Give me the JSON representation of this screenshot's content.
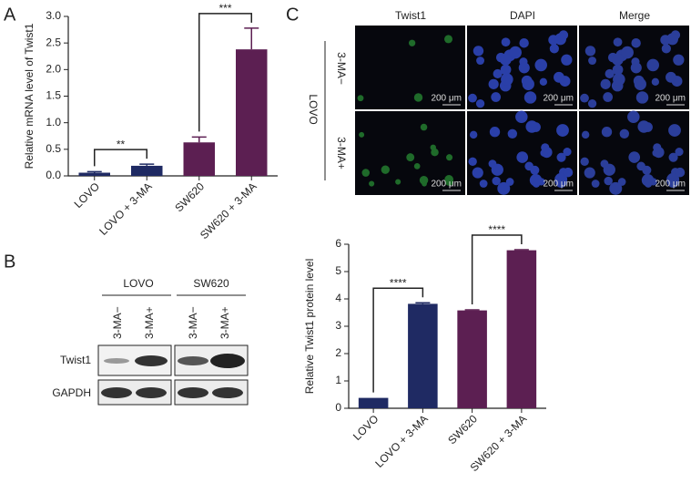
{
  "panels": {
    "a": "A",
    "b": "B",
    "c": "C"
  },
  "chart_data": [
    {
      "type": "bar",
      "ylabel": "Relative mRNA level of Twist1",
      "categories": [
        "LOVO",
        "LOVO + 3-MA",
        "SW620",
        "SW620 + 3-MA"
      ],
      "values": [
        0.06,
        0.19,
        0.63,
        2.38
      ],
      "errors": [
        0.02,
        0.03,
        0.1,
        0.4
      ],
      "colors": [
        "#1f2a63",
        "#1f2a63",
        "#5c1f52",
        "#5c1f52"
      ],
      "ylim": [
        0,
        3.0
      ],
      "yticks": [
        {
          "value": 0,
          "label": "0.0"
        },
        {
          "value": 0.5,
          "label": "0.5"
        },
        {
          "value": 1,
          "label": "1.0"
        },
        {
          "value": 1.5,
          "label": "1.5"
        },
        {
          "value": 2,
          "label": "2.0"
        },
        {
          "value": 2.5,
          "label": "2.5"
        },
        {
          "value": 3,
          "label": "3.0"
        }
      ],
      "annotations": [
        {
          "text": "**",
          "pair": [
            0,
            1
          ]
        },
        {
          "text": "***",
          "pair": [
            2,
            3
          ]
        }
      ]
    },
    {
      "type": "bar",
      "ylabel": "Relative Twist1 protein level",
      "categories": [
        "LOVO",
        "LOVO + 3-MA",
        "SW620",
        "SW620 + 3-MA"
      ],
      "values": [
        0.38,
        3.82,
        3.58,
        5.78
      ],
      "errors": [
        null,
        0.04,
        0.02,
        0.02
      ],
      "colors": [
        "#1f2a63",
        "#1f2a63",
        "#5c1f52",
        "#5c1f52"
      ],
      "ylim": [
        0,
        6
      ],
      "yticks": [
        0,
        1,
        2,
        3,
        4,
        5,
        6
      ],
      "annotations": [
        {
          "text": "****",
          "pair": [
            0,
            1
          ]
        },
        {
          "text": "****",
          "pair": [
            2,
            3
          ]
        }
      ]
    }
  ],
  "western_blot": {
    "groups": [
      "LOVO",
      "SW620"
    ],
    "lanes": [
      "3-MA−",
      "3-MA+",
      "3-MA−",
      "3-MA+"
    ],
    "rows": [
      "Twist1",
      "GAPDH"
    ]
  },
  "microscopy": {
    "columns": [
      "Twist1",
      "DAPI",
      "Merge"
    ],
    "rows": [
      "3-MA−",
      "3-MA+"
    ],
    "group": "LOVO",
    "scale_bar": "200 μm"
  }
}
